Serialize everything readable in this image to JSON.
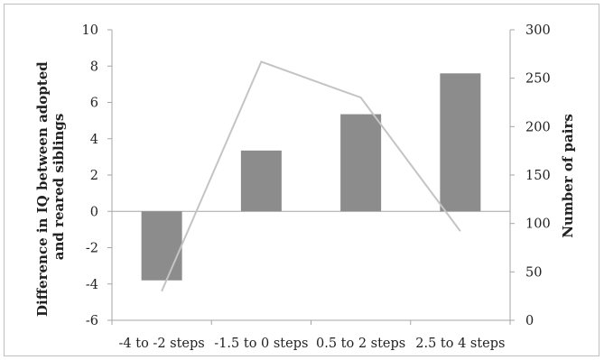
{
  "chart_data": {
    "type": "bar",
    "categories": [
      "-4 to -2 steps",
      "-1.5 to 0 steps",
      "0.5 to 2 steps",
      "2.5 to 4 steps"
    ],
    "series": [
      {
        "axis": "left",
        "type": "bar",
        "color": "#8c8c8c",
        "values": [
          -3.8,
          3.35,
          5.35,
          7.6
        ]
      },
      {
        "axis": "right",
        "type": "line",
        "color": "#c4c4c4",
        "values": [
          30,
          267,
          230,
          92
        ]
      }
    ],
    "ylabel_lines": [
      "Difference in IQ between adopted",
      "and reared siblings"
    ],
    "y2label": "Number of pairs",
    "ylim": [
      -6,
      10
    ],
    "y_ticks": [
      "10",
      "8",
      "6",
      "4",
      "2",
      "0",
      "-2",
      "-4",
      "-6"
    ],
    "y2lim": [
      0,
      300
    ],
    "y2_ticks": [
      "300",
      "250",
      "200",
      "150",
      "100",
      "50",
      "0"
    ],
    "grid": false,
    "legend": "none"
  }
}
